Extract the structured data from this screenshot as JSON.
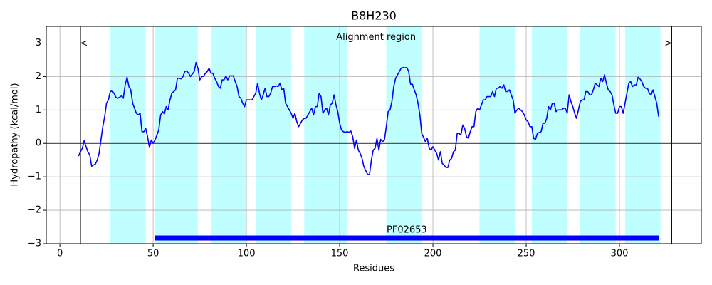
{
  "chart_data": {
    "type": "line",
    "title": "B8H230",
    "xlabel": "Residues",
    "ylabel": "Hydropathy (kcal/mol)",
    "color": "#0000ff",
    "region_color": "#c0ffff",
    "grid": true,
    "xlim": [
      -7.3,
      343.9
    ],
    "ylim": [
      -3,
      3.5
    ],
    "xticks": [
      0,
      50,
      100,
      150,
      200,
      250,
      300
    ],
    "yticks": [
      {
        "value": -3,
        "label": "−3"
      },
      {
        "value": -2,
        "label": "−2"
      },
      {
        "value": -1,
        "label": "−1"
      },
      0,
      1,
      2,
      3
    ],
    "regions": [
      [
        27,
        46
      ],
      [
        51,
        74
      ],
      [
        81,
        100
      ],
      [
        105,
        124
      ],
      [
        131,
        154
      ],
      [
        175,
        194
      ],
      [
        225,
        244
      ],
      [
        253,
        272
      ],
      [
        279,
        298
      ],
      [
        303,
        322
      ]
    ],
    "alignment": {
      "label": "Alignment region",
      "start": 11,
      "end": 328,
      "y": 3
    },
    "domain": {
      "name": "PF02653",
      "start": 51,
      "end": 321,
      "y": -2.83,
      "color": "#0000ff"
    },
    "x": [
      10,
      11,
      12,
      13,
      14,
      15,
      16,
      17,
      18,
      19,
      20,
      21,
      22,
      23,
      24,
      25,
      26,
      27,
      28,
      29,
      30,
      31,
      32,
      33,
      34,
      35,
      36,
      37,
      38,
      39,
      41,
      42,
      43,
      44,
      45,
      46,
      47,
      48,
      49,
      50,
      51,
      52,
      53,
      54,
      55,
      56,
      57,
      58,
      59,
      60,
      61,
      62,
      63,
      64,
      65,
      66,
      67,
      68,
      69,
      70,
      72,
      73,
      74,
      75,
      76,
      77,
      78,
      79,
      80,
      81,
      82,
      83,
      84,
      85,
      86,
      87,
      88,
      89,
      90,
      91,
      92,
      93,
      94,
      95,
      96,
      97,
      98,
      99,
      100,
      101,
      103,
      104,
      105,
      106,
      107,
      108,
      109,
      110,
      111,
      112,
      113,
      114,
      115,
      116,
      117,
      118,
      119,
      120,
      121,
      122,
      123,
      124,
      125,
      126,
      127,
      128,
      129,
      130,
      131,
      132,
      134,
      135,
      136,
      137,
      138,
      139,
      140,
      141,
      142,
      143,
      144,
      145,
      146,
      147,
      148,
      149,
      150,
      151,
      152,
      153,
      154,
      155,
      156,
      157,
      158,
      159,
      160,
      161,
      162,
      163,
      165,
      166,
      167,
      168,
      169,
      170,
      171,
      172,
      173,
      174,
      175,
      176,
      177,
      178,
      179,
      180,
      181,
      182,
      183,
      184,
      185,
      186,
      187,
      188,
      189,
      190,
      191,
      192,
      193,
      194,
      196,
      197,
      198,
      199,
      200,
      201,
      202,
      203,
      204,
      205,
      206,
      207,
      208,
      209,
      210,
      211,
      212,
      213,
      214,
      215,
      216,
      217,
      218,
      219,
      220,
      221,
      222,
      223,
      224,
      225,
      227,
      228,
      229,
      230,
      231,
      232,
      233,
      234,
      235,
      236,
      237,
      238,
      239,
      240,
      241,
      242,
      243,
      244,
      245,
      246,
      247,
      248,
      249,
      250,
      251,
      252,
      253,
      254,
      255,
      256,
      258,
      259,
      260,
      261,
      262,
      263,
      264,
      265,
      266,
      267,
      268,
      269,
      270,
      271,
      272,
      273,
      274,
      275,
      276,
      277,
      278,
      279,
      280,
      281,
      282,
      283,
      284,
      285,
      286,
      287,
      289,
      290,
      291,
      292,
      293,
      294,
      295,
      296,
      297,
      298,
      299,
      300,
      301,
      302,
      303,
      304,
      305,
      306,
      307,
      308,
      309,
      310,
      311,
      312,
      313,
      314,
      315,
      316,
      317,
      318,
      320,
      321
    ],
    "values": [
      -0.38,
      -0.25,
      -0.15,
      0.08,
      -0.1,
      -0.25,
      -0.35,
      -0.68,
      -0.65,
      -0.62,
      -0.5,
      -0.3,
      0.1,
      0.5,
      0.8,
      1.2,
      1.3,
      1.55,
      1.57,
      1.5,
      1.38,
      1.35,
      1.38,
      1.42,
      1.35,
      1.75,
      1.98,
      1.7,
      1.6,
      1.2,
      0.9,
      0.85,
      0.9,
      0.35,
      0.35,
      0.45,
      0.2,
      -0.12,
      0.1,
      0.0,
      0.1,
      0.25,
      0.4,
      0.85,
      0.95,
      0.88,
      1.1,
      1.0,
      1.3,
      1.5,
      1.55,
      1.6,
      1.95,
      1.95,
      1.93,
      2.0,
      2.15,
      2.17,
      2.1,
      2.0,
      2.15,
      2.42,
      2.25,
      1.9,
      2.0,
      2.0,
      2.1,
      2.15,
      2.25,
      2.1,
      2.1,
      1.95,
      1.85,
      1.7,
      1.65,
      1.9,
      1.9,
      2.02,
      1.9,
      2.02,
      2.02,
      2.02,
      1.85,
      1.7,
      1.4,
      1.35,
      1.2,
      1.1,
      1.3,
      1.3,
      1.3,
      1.4,
      1.5,
      1.8,
      1.5,
      1.3,
      1.45,
      1.65,
      1.4,
      1.4,
      1.5,
      1.7,
      1.7,
      1.72,
      1.7,
      1.8,
      1.6,
      1.65,
      1.2,
      1.1,
      1.0,
      0.9,
      0.75,
      0.9,
      0.65,
      0.5,
      0.6,
      0.7,
      0.75,
      0.75,
      0.95,
      1.05,
      0.85,
      1.1,
      1.1,
      1.5,
      1.4,
      0.9,
      1.0,
      1.05,
      0.85,
      1.15,
      1.2,
      1.45,
      1.15,
      0.95,
      0.6,
      0.4,
      0.35,
      0.33,
      0.35,
      0.33,
      0.37,
      0.2,
      -0.15,
      0.1,
      -0.2,
      -0.3,
      -0.45,
      -0.7,
      -0.93,
      -0.93,
      -0.5,
      -0.2,
      -0.15,
      0.15,
      -0.2,
      0.12,
      0.05,
      0.1,
      0.5,
      0.95,
      1.0,
      1.25,
      1.7,
      1.95,
      2.05,
      2.15,
      2.25,
      2.27,
      2.26,
      2.27,
      2.15,
      1.77,
      1.77,
      1.6,
      1.45,
      1.2,
      0.85,
      0.3,
      0.05,
      0.15,
      -0.15,
      -0.2,
      -0.1,
      -0.2,
      -0.3,
      -0.5,
      -0.25,
      -0.6,
      -0.65,
      -0.72,
      -0.72,
      -0.5,
      -0.45,
      -0.25,
      -0.2,
      0.3,
      0.3,
      0.25,
      0.55,
      0.45,
      0.2,
      0.15,
      0.35,
      0.5,
      0.5,
      0.95,
      1.05,
      1.0,
      1.3,
      1.3,
      1.4,
      1.4,
      1.4,
      1.55,
      1.4,
      1.65,
      1.65,
      1.7,
      1.65,
      1.75,
      1.55,
      1.55,
      1.6,
      1.45,
      1.3,
      0.9,
      1.0,
      1.05,
      1.0,
      0.95,
      0.85,
      0.7,
      0.65,
      0.5,
      0.5,
      0.15,
      0.12,
      0.3,
      0.35,
      0.6,
      0.6,
      0.75,
      1.1,
      1.0,
      1.2,
      1.2,
      0.95,
      1.0,
      1.0,
      1.0,
      1.05,
      1.05,
      0.9,
      1.45,
      1.25,
      1.1,
      0.9,
      0.75,
      1.0,
      1.25,
      1.3,
      1.3,
      1.55,
      1.55,
      1.45,
      1.45,
      1.6,
      1.8,
      1.7,
      1.95,
      1.85,
      2.05,
      1.8,
      1.6,
      1.55,
      1.45,
      1.15,
      0.9,
      0.9,
      1.1,
      1.1,
      0.9,
      1.2,
      1.5,
      1.8,
      1.85,
      1.7,
      1.75,
      1.75,
      1.98,
      1.93,
      1.85,
      1.7,
      1.65,
      1.65,
      1.5,
      1.45,
      1.6,
      1.2,
      0.8
    ]
  }
}
